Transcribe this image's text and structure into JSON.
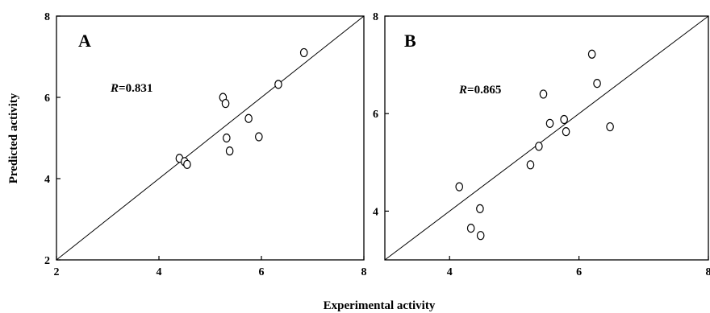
{
  "chart_data": [
    {
      "type": "scatter",
      "panel_label": "A",
      "r_prefix": "R",
      "r_value": "=0.831",
      "xlim": [
        2,
        8
      ],
      "ylim": [
        2,
        8
      ],
      "x_ticks": [
        2,
        4,
        6,
        8
      ],
      "y_ticks": [
        2,
        4,
        6,
        8
      ],
      "grid": false,
      "reference_line": "y = x",
      "points": [
        {
          "x": 4.4,
          "y": 4.5
        },
        {
          "x": 4.5,
          "y": 4.42
        },
        {
          "x": 4.55,
          "y": 4.35
        },
        {
          "x": 5.25,
          "y": 6.0
        },
        {
          "x": 5.3,
          "y": 5.85
        },
        {
          "x": 5.32,
          "y": 5.0
        },
        {
          "x": 5.38,
          "y": 4.68
        },
        {
          "x": 5.75,
          "y": 5.48
        },
        {
          "x": 5.95,
          "y": 5.03
        },
        {
          "x": 6.33,
          "y": 6.32
        },
        {
          "x": 6.83,
          "y": 7.1
        }
      ]
    },
    {
      "type": "scatter",
      "panel_label": "B",
      "r_prefix": "R",
      "r_value": "=0.865",
      "xlim": [
        3,
        8
      ],
      "ylim": [
        3,
        8
      ],
      "x_ticks": [
        4,
        6,
        8
      ],
      "y_ticks": [
        4,
        6,
        8
      ],
      "grid": false,
      "reference_line": "y = x",
      "points": [
        {
          "x": 4.15,
          "y": 4.5
        },
        {
          "x": 4.33,
          "y": 3.65
        },
        {
          "x": 4.47,
          "y": 4.05
        },
        {
          "x": 4.48,
          "y": 3.5
        },
        {
          "x": 5.25,
          "y": 4.95
        },
        {
          "x": 5.38,
          "y": 5.33
        },
        {
          "x": 5.45,
          "y": 6.4
        },
        {
          "x": 5.55,
          "y": 5.8
        },
        {
          "x": 5.77,
          "y": 5.88
        },
        {
          "x": 5.8,
          "y": 5.63
        },
        {
          "x": 6.2,
          "y": 7.22
        },
        {
          "x": 6.28,
          "y": 6.62
        },
        {
          "x": 6.48,
          "y": 5.73
        }
      ]
    }
  ],
  "axes": {
    "ylabel": "Predicted activity",
    "xlabel": "Experimental activity"
  }
}
